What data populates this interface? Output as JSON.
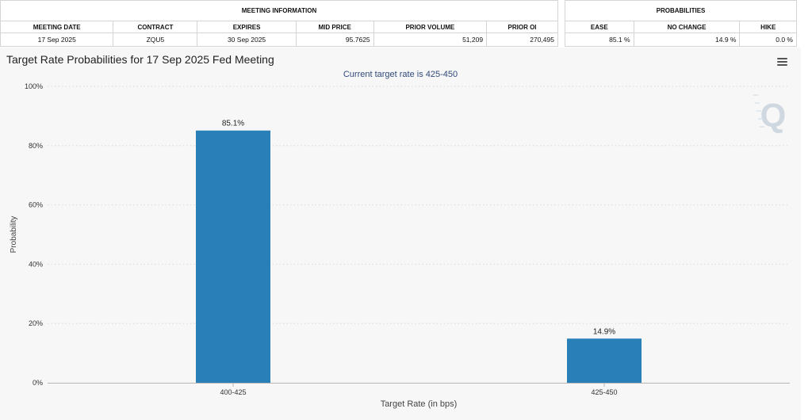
{
  "meeting_info": {
    "group_label": "MEETING INFORMATION",
    "headers": [
      "MEETING DATE",
      "CONTRACT",
      "EXPIRES",
      "MID PRICE",
      "PRIOR VOLUME",
      "PRIOR OI"
    ],
    "values": [
      "17 Sep 2025",
      "ZQU5",
      "30 Sep 2025",
      "95.7625",
      "51,209",
      "270,495"
    ]
  },
  "probabilities": {
    "group_label": "PROBABILITIES",
    "headers": [
      "EASE",
      "NO CHANGE",
      "HIKE"
    ],
    "values": [
      "85.1 %",
      "14.9 %",
      "0.0 %"
    ]
  },
  "menu": {
    "icon": "hamburger-menu-icon"
  },
  "watermark": {
    "icon": "q-logo-watermark",
    "text": "Q"
  },
  "colors": {
    "bar": "#2980b9",
    "grid": "#d9d9d9",
    "background": "#f7f7f7"
  },
  "chart_data": {
    "type": "bar",
    "title": "Target Rate Probabilities for 17 Sep 2025 Fed Meeting",
    "subtitle": "Current target rate is 425-450",
    "xlabel": "Target Rate (in bps)",
    "ylabel": "Probability",
    "categories": [
      "400-425",
      "425-450"
    ],
    "values": [
      85.1,
      14.9
    ],
    "data_labels": [
      "85.1%",
      "14.9%"
    ],
    "ylim": [
      0,
      100
    ],
    "yticks": [
      0,
      20,
      40,
      60,
      80,
      100
    ],
    "ytick_labels": [
      "0%",
      "20%",
      "40%",
      "60%",
      "80%",
      "100%"
    ],
    "grid": true,
    "legend": "none"
  }
}
